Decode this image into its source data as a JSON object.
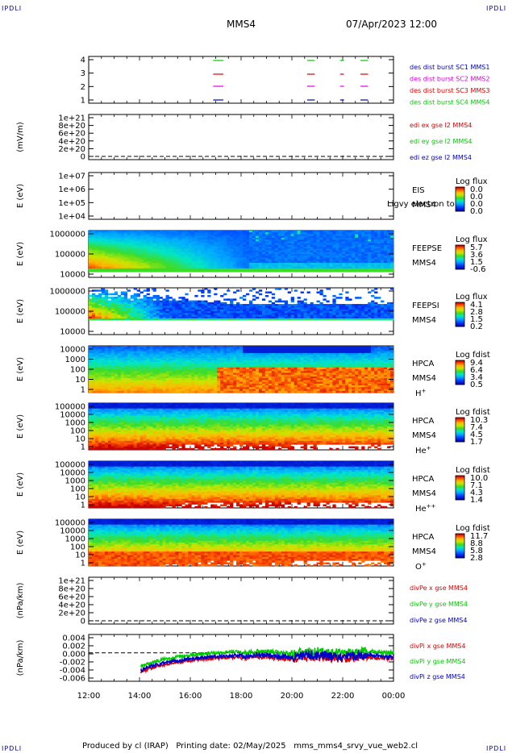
{
  "header": {
    "title": "MMS4",
    "date": "07/Apr/2023 12:00"
  },
  "corner_label": "IPDLI",
  "footer": "Produced by cl (IRAP)   Printing date: 02/May/2025   mms_mms4_srvy_vue_web2.cl",
  "colors": {
    "red": "#e00000",
    "magenta": "#e000e0",
    "green": "#00cc00",
    "blue": "#0000cc"
  },
  "x_ticks": [
    "12:00",
    "14:00",
    "16:00",
    "18:00",
    "20:00",
    "22:00",
    "00:00"
  ],
  "chart_data": [
    {
      "type": "line",
      "panel": "burst",
      "yticks": [
        "4",
        "3",
        "2",
        "1"
      ],
      "legend": [
        {
          "label": "des dist burst SC1 MMS1",
          "color": "blue"
        },
        {
          "label": "des dist burst SC2 MMS2",
          "color": "magenta"
        },
        {
          "label": "des dist burst SC3 MMS3",
          "color": "red"
        },
        {
          "label": "des dist burst SC4 MMS4",
          "color": "green"
        }
      ]
    },
    {
      "type": "line",
      "panel": "edi",
      "ylabel": "(mV/m)",
      "yticks": [
        "1e+21",
        "8e+20",
        "6e+20",
        "4e+20",
        "2e+20",
        "0"
      ],
      "legend": [
        {
          "label": "edi ex gse l2 MMS4",
          "color": "red"
        },
        {
          "label": "edi ey gse l2 MMS4",
          "color": "green"
        },
        {
          "label": "edi ez gse l2 MMS4",
          "color": "blue"
        }
      ]
    },
    {
      "type": "heatmap",
      "panel": "eis",
      "ylabel": "E (eV)",
      "yticks": [
        "1e+07",
        "1e+06",
        "1e+05",
        "1e+04"
      ],
      "labels": [
        "EIS",
        "MMS4"
      ],
      "overlay": "Ligvy electron to",
      "scale_title": "Log flux",
      "scale_ticks": [
        "0.0",
        "0.0",
        "0.0",
        "0.0"
      ]
    },
    {
      "type": "heatmap",
      "panel": "feepse",
      "ylabel": "E (eV)",
      "yticks": [
        "1000000",
        "100000",
        "10000"
      ],
      "labels": [
        "FEEPSE",
        "MMS4"
      ],
      "scale_title": "Log flux",
      "scale_ticks": [
        "5.7",
        "3.6",
        "1.5",
        "-0.6"
      ]
    },
    {
      "type": "heatmap",
      "panel": "feepsi",
      "ylabel": "E (eV)",
      "yticks": [
        "1000000",
        "100000",
        "10000"
      ],
      "labels": [
        "FEEPSI",
        "MMS4"
      ],
      "scale_title": "Log flux",
      "scale_ticks": [
        "4.1",
        "2.8",
        "1.5",
        "0.2"
      ]
    },
    {
      "type": "heatmap",
      "panel": "hpca_h",
      "ylabel": "E (eV)",
      "yticks": [
        "10000",
        "1000",
        "100",
        "10",
        "1"
      ],
      "labels": [
        "HPCA",
        "MMS4"
      ],
      "species": "H",
      "charge": "+",
      "scale_title": "Log fdist",
      "scale_ticks": [
        "9.4",
        "6.4",
        "3.4",
        "0.5"
      ]
    },
    {
      "type": "heatmap",
      "panel": "hpca_he",
      "ylabel": "E (eV)",
      "yticks": [
        "100000",
        "10000",
        "1000",
        "100",
        "10",
        "1"
      ],
      "labels": [
        "HPCA",
        "MMS4"
      ],
      "species": "He",
      "charge": "+",
      "scale_title": "Log fdist",
      "scale_ticks": [
        "10.3",
        "7.4",
        "4.5",
        "1.7"
      ]
    },
    {
      "type": "heatmap",
      "panel": "hpca_hepp",
      "ylabel": "E (eV)",
      "yticks": [
        "100000",
        "10000",
        "1000",
        "100",
        "10",
        "1"
      ],
      "labels": [
        "HPCA",
        "MMS4"
      ],
      "species": "He",
      "charge": "++",
      "scale_title": "Log fdist",
      "scale_ticks": [
        "10.0",
        "7.1",
        "4.3",
        "1.4"
      ]
    },
    {
      "type": "heatmap",
      "panel": "hpca_o",
      "ylabel": "E (eV)",
      "yticks": [
        "100000",
        "10000",
        "1000",
        "100",
        "10",
        "1"
      ],
      "labels": [
        "HPCA",
        "MMS4"
      ],
      "species": "O",
      "charge": "+",
      "scale_title": "Log fdist",
      "scale_ticks": [
        "11.7",
        "8.8",
        "5.8",
        "2.8"
      ]
    },
    {
      "type": "line",
      "panel": "divpe",
      "ylabel": "(nPa/km)",
      "yticks": [
        "1e+21",
        "8e+20",
        "6e+20",
        "4e+20",
        "2e+20",
        "0"
      ],
      "legend": [
        {
          "label": "divPe x gse MMS4",
          "color": "red"
        },
        {
          "label": "divPe y gse MMS4",
          "color": "green"
        },
        {
          "label": "divPe z gse MMS4",
          "color": "blue"
        }
      ]
    },
    {
      "type": "line",
      "panel": "divpi",
      "ylabel": "(nPa/km)",
      "yticks": [
        "0.004",
        "0.002",
        "0.000",
        "-0.002",
        "-0.004",
        "-0.006"
      ],
      "ylim": [
        -0.007,
        0.0045
      ],
      "legend": [
        {
          "label": "divPi x gse MMS4",
          "color": "red"
        },
        {
          "label": "divPi y gse MMS4",
          "color": "green"
        },
        {
          "label": "divPi z gse MMS4",
          "color": "blue"
        }
      ]
    }
  ]
}
